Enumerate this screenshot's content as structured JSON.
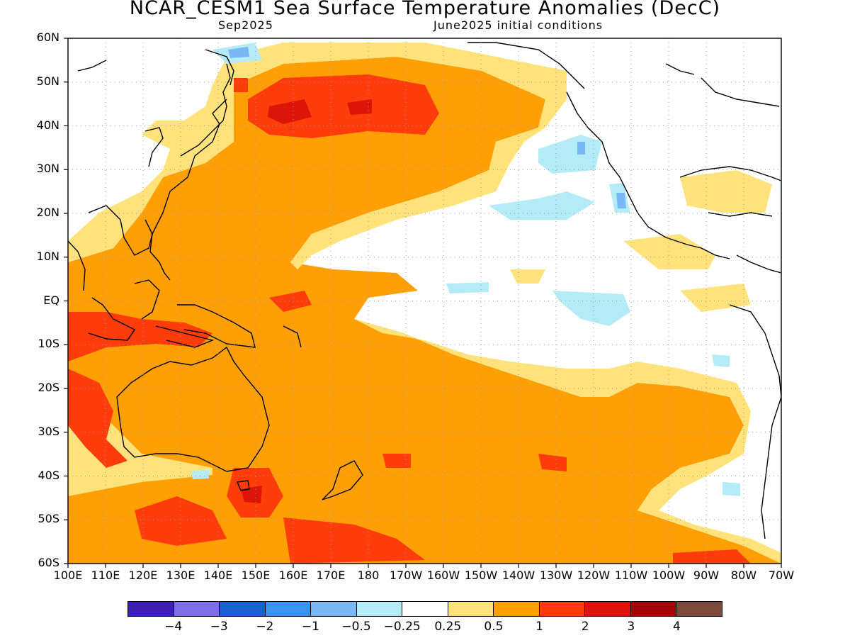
{
  "title": "NCAR_CESM1 Sea Surface Temperature Anomalies (DecC)",
  "subtitle_left": "Sep2025",
  "subtitle_right": "June2025 initial conditions",
  "lat_labels": [
    "60N",
    "50N",
    "40N",
    "30N",
    "20N",
    "10N",
    "EQ",
    "10S",
    "20S",
    "30S",
    "40S",
    "50S",
    "60S"
  ],
  "lon_labels": [
    "100E",
    "110E",
    "120E",
    "130E",
    "140E",
    "150E",
    "160E",
    "170E",
    "180",
    "170W",
    "160W",
    "150W",
    "140W",
    "130W",
    "120W",
    "110W",
    "100W",
    "90W",
    "80W",
    "70W"
  ],
  "colorbar": {
    "colors": [
      "#3d1fb5",
      "#7f6ee8",
      "#1c5fcf",
      "#3a93f0",
      "#79b7f5",
      "#b3ecf7",
      "#ffffff",
      "#ffe27a",
      "#ff9f06",
      "#ff3c0a",
      "#dd1407",
      "#a20606",
      "#7b4a3a"
    ],
    "labels": [
      "−4",
      "−3",
      "−2",
      "−1",
      "−0.5",
      "−0.25",
      "0.25",
      "0.5",
      "1",
      "2",
      "3",
      "4"
    ]
  },
  "chart_data": {
    "type": "heatmap",
    "variable": "Sea Surface Temperature Anomalies",
    "units": "DecC",
    "lat_range": [
      "60S",
      "60N"
    ],
    "lon_range": [
      "100E",
      "70W"
    ],
    "levels": [
      -4,
      -3,
      -2,
      -1,
      -0.5,
      -0.25,
      0.25,
      0.5,
      1,
      2,
      3,
      4
    ],
    "grid": true
  }
}
